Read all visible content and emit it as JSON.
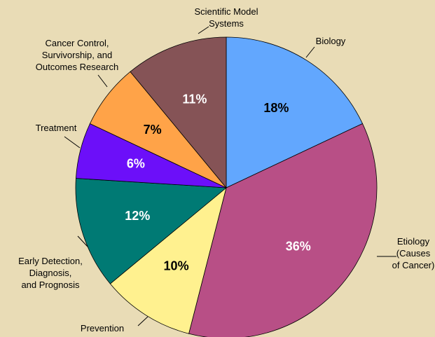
{
  "chart_data": {
    "type": "pie",
    "categories": [
      "Biology",
      "Etiology (Causes of Cancer)",
      "Prevention",
      "Early Detection, Diagnosis, and Prognosis",
      "Treatment",
      "Cancer Control, Survivorship, and Outcomes Research",
      "Scientific Model Systems"
    ],
    "values": [
      18,
      36,
      10,
      12,
      6,
      7,
      11
    ],
    "value_labels": [
      "18%",
      "36%",
      "10%",
      "12%",
      "6%",
      "7%",
      "11%"
    ],
    "colors": [
      "#62a7fe",
      "#b84f86",
      "#fff18f",
      "#007a74",
      "#6c0ff9",
      "#ffa348",
      "#855356"
    ],
    "label_colors": [
      "#000000",
      "#ffffff",
      "#000000",
      "#ffffff",
      "#ffffff",
      "#000000",
      "#ffffff"
    ]
  }
}
